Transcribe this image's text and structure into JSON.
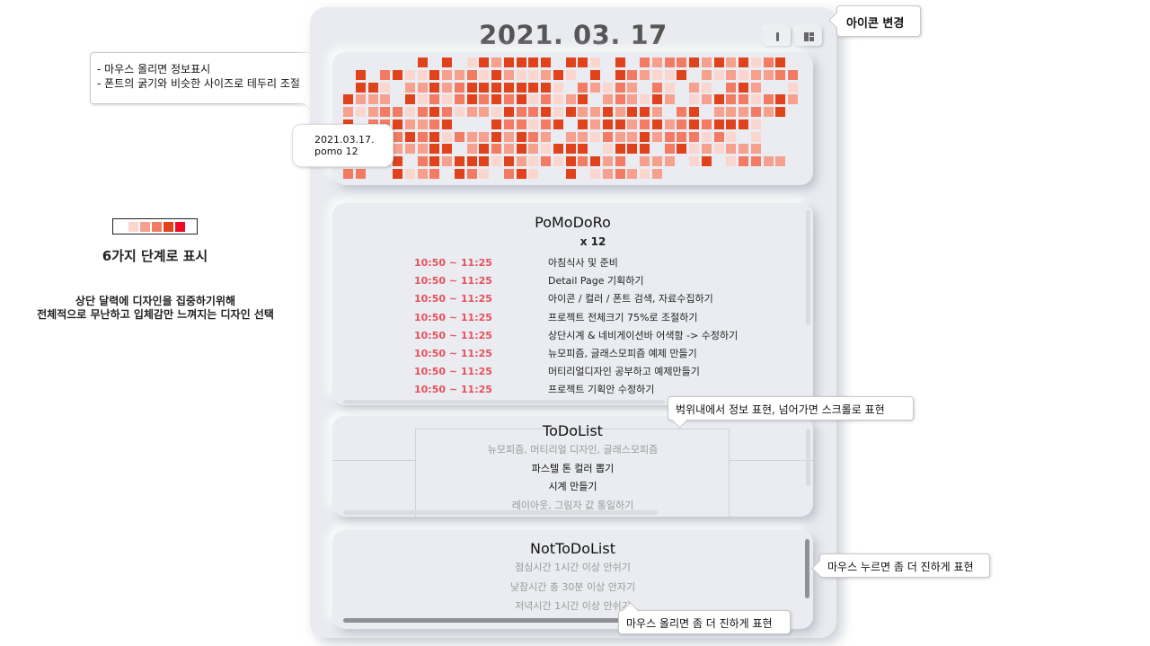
{
  "header": {
    "date": "2021. 03. 17",
    "icon_buttons": [
      {
        "name": "single-view-icon"
      },
      {
        "name": "layout-icon"
      }
    ]
  },
  "calendar": {
    "palette": [
      "#fbd6cf",
      "#f7a08e",
      "#f47b63",
      "#e0431b",
      "#ec0a27"
    ],
    "columns": 37,
    "rows": 10,
    "levels": [
      "0000004040142444404410403233424241340",
      "0403411422314211241040432114021212233",
      "0441022423444444410321320310210342001",
      "4222041313434341312402321420124331342",
      "2123313431221433414224244203402223240",
      "4033422340004331340424423423434441000",
      "0440343413224243202213224233313101000",
      "3424222440243242144401444034121222000",
      "1104403424441421314342302220140133220",
      "3300412304310341004012321200000000000"
    ]
  },
  "tooltip": {
    "date": "2021.03.17.",
    "pomo": "pomo 12"
  },
  "pomodoro": {
    "title": "PoMoDoRo",
    "count": "x 12",
    "items": [
      {
        "time": "10:50 ~ 11:25",
        "task": "아침식사 및 준비"
      },
      {
        "time": "10:50 ~ 11:25",
        "task": "Detail Page 기획하기"
      },
      {
        "time": "10:50 ~ 11:25",
        "task": "아이콘 / 컬러 / 폰트 검색, 자료수집하기"
      },
      {
        "time": "10:50 ~ 11:25",
        "task": "프로젝트 전체크기 75%로 조절하기"
      },
      {
        "time": "10:50 ~ 11:25",
        "task": "상단시계 & 네비게이션바 어색함 -> 수정하기"
      },
      {
        "time": "10:50 ~ 11:25",
        "task": "뉴모피즘, 글래스모피즘 예제 만들기"
      },
      {
        "time": "10:50 ~ 11:25",
        "task": "머티리얼디자인 공부하고 예제만들기"
      },
      {
        "time": "10:50 ~ 11:25",
        "task": "프로젝트 기획안 수정하기"
      }
    ]
  },
  "todo": {
    "title": "ToDoList",
    "items": [
      {
        "text": "뉴모피즘, 머티리얼 디자인, 글래스모피즘",
        "done": true
      },
      {
        "text": "파스텔 톤 컬러 뽑기",
        "done": false
      },
      {
        "text": "시계 만들기",
        "done": false
      },
      {
        "text": "레이아웃, 그림자 값 통일하기",
        "done": true
      }
    ]
  },
  "nottodo": {
    "title": "NotToDoList",
    "items": [
      "점심시간 1시간 이상 안쉬기",
      "낮잠시간 총 30분 이상 안자기",
      "저녁시간 1시간 이상 안쉬기"
    ]
  },
  "annotations": {
    "icon_change": "아이콘 변경",
    "hover_info_1": "- 마우스 올리면 정보표시",
    "hover_info_2": "- 폰트의 굵기와 비슷한 사이즈로 테두리 조절",
    "scroll_note": "범위내에서 정보 표현, 넘어가면 스크롤로 표현",
    "press_note": "마우스 누르면 좀 더 진하게 표현",
    "hover_note": "마우스 올리면 좀 더 진하게 표현",
    "levels_label": "6가지 단계로 표시",
    "design_note_1": "상단 달력에 디자인을 집중하기위해",
    "design_note_2": "전체적으로 무난하고 입체감만 느껴지는 디자인 선택"
  }
}
